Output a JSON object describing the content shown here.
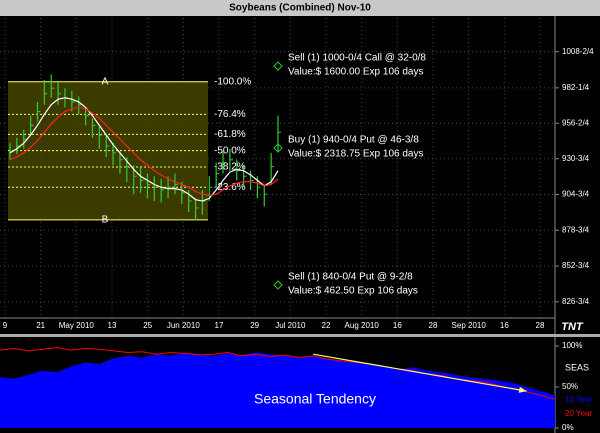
{
  "chart_data": [
    {
      "type": "ohlc",
      "title": "Soybeans (Combined) Nov-10",
      "x_axis_labels": [
        "9",
        "21",
        "May 2010",
        "13",
        "25",
        "Jun 2010",
        "17",
        "29",
        "Jul 2010",
        "22",
        "Aug 2010",
        "16",
        "28",
        "Sep 2010",
        "16",
        "28"
      ],
      "high": [
        942,
        946,
        952,
        962,
        972,
        988,
        992,
        986,
        982,
        980,
        976,
        968,
        960,
        954,
        948,
        942,
        936,
        932,
        926,
        924,
        920,
        918,
        916,
        918,
        920,
        914,
        908,
        902,
        908,
        918,
        928,
        936,
        938,
        930,
        926,
        922,
        918,
        912,
        935,
        962
      ],
      "low": [
        930,
        934,
        938,
        948,
        958,
        970,
        975,
        970,
        968,
        965,
        963,
        955,
        946,
        938,
        932,
        926,
        920,
        914,
        905,
        906,
        902,
        900,
        899,
        902,
        905,
        898,
        892,
        886,
        890,
        900,
        910,
        920,
        922,
        915,
        910,
        908,
        902,
        896,
        912,
        936
      ],
      "close": [
        936,
        940,
        945,
        955,
        965,
        978,
        982,
        978,
        975,
        972,
        970,
        962,
        955,
        948,
        940,
        935,
        930,
        925,
        918,
        915,
        912,
        910,
        908,
        910,
        912,
        906,
        900,
        895,
        900,
        910,
        920,
        928,
        930,
        922,
        918,
        915,
        910,
        905,
        925,
        950
      ],
      "bar_color": "#33cc33",
      "moving_averages": [
        {
          "color": "#ffffff",
          "values": [
            935,
            938,
            942,
            948,
            955,
            963,
            970,
            974,
            975,
            974,
            972,
            968,
            962,
            955,
            948,
            941,
            935,
            929,
            923,
            918,
            915,
            912,
            910,
            909,
            909,
            908,
            905,
            901,
            900,
            902,
            908,
            915,
            921,
            923,
            922,
            919,
            915,
            911,
            914,
            922
          ]
        },
        {
          "color": "#ff2020",
          "values": [
            930,
            932,
            935,
            939,
            944,
            950,
            956,
            961,
            965,
            967,
            968,
            967,
            964,
            960,
            955,
            950,
            945,
            940,
            935,
            930,
            926,
            922,
            919,
            916,
            914,
            912,
            910,
            907,
            905,
            904,
            905,
            908,
            911,
            913,
            914,
            914,
            913,
            911,
            912,
            916
          ]
        }
      ],
      "fibonacci": {
        "high": 986.7,
        "high_label": "A",
        "low": 886.3,
        "low_label": "B",
        "levels": [
          {
            "value": 986.7,
            "label": "-100.0%"
          },
          {
            "value": 963,
            "label": "-76.4%"
          },
          {
            "value": 948.4,
            "label": "-61.8%"
          },
          {
            "value": 936.6,
            "label": "-50.0%"
          },
          {
            "value": 924.7,
            "label": "-38.2%"
          },
          {
            "value": 910,
            "label": "-23.6%"
          }
        ]
      },
      "annotations": [
        {
          "y": 998.1,
          "lines": [
            "Sell (1) 1000-0/4 Call @ 32-0/8",
            "Value:$ 1600.00  Exp 106 days"
          ]
        },
        {
          "y": 938.5,
          "lines": [
            "Buy (1) 940-0/4 Put @ 46-3/8",
            "Value:$ 2318.75  Exp 106 days"
          ]
        },
        {
          "y": 839.0,
          "lines": [
            "Sell (1) 840-0/4 Put @ 9-2/8",
            "Value:$ 462.50  Exp 106 days"
          ]
        }
      ],
      "logo": "TNT",
      "ylim": [
        815,
        1033
      ],
      "yticks": [
        {
          "value": 1008.5,
          "label": "1008-2/4"
        },
        {
          "value": 982.25,
          "label": "982-1/4"
        },
        {
          "value": 956.5,
          "label": "956-2/4"
        },
        {
          "value": 930.75,
          "label": "930-3/4"
        },
        {
          "value": 904.75,
          "label": "904-3/4"
        },
        {
          "value": 878.75,
          "label": "878-3/4"
        },
        {
          "value": 852.75,
          "label": "852-3/4"
        },
        {
          "value": 826.75,
          "label": "826-3/4"
        }
      ],
      "grid": true
    },
    {
      "type": "seasonal",
      "label": "Seasonal Tendency",
      "panel_label": "SEAS",
      "series": [
        {
          "name": "10 Year",
          "color": "#0000ff",
          "values": [
            62,
            60,
            65,
            70,
            68,
            75,
            80,
            78,
            85,
            88,
            86,
            90,
            88,
            92,
            90,
            88,
            91,
            89,
            92,
            90,
            88,
            86,
            88,
            85,
            82,
            80,
            78,
            76,
            72,
            74,
            70,
            68,
            65,
            62,
            60,
            58,
            55,
            50,
            45,
            40
          ]
        },
        {
          "name": "20 Year",
          "color": "#ff0000",
          "values": [
            95,
            97,
            94,
            96,
            98,
            95,
            97,
            96,
            94,
            92,
            93,
            90,
            92,
            91,
            89,
            90,
            92,
            88,
            90,
            87,
            89,
            86,
            88,
            84,
            82,
            80,
            78,
            75,
            72,
            70,
            66,
            64,
            60,
            58,
            56,
            52,
            48,
            44,
            40,
            35
          ]
        }
      ],
      "trend_line": {
        "start_index": 22,
        "start_value": 90,
        "end_index": 37,
        "end_value": 45,
        "color": "#ffff66"
      },
      "ylim": [
        0,
        100
      ],
      "yticks": [
        {
          "value": 100,
          "label": "100%"
        },
        {
          "value": 50,
          "label": "50%"
        },
        {
          "value": 0,
          "label": "0%"
        }
      ]
    }
  ]
}
